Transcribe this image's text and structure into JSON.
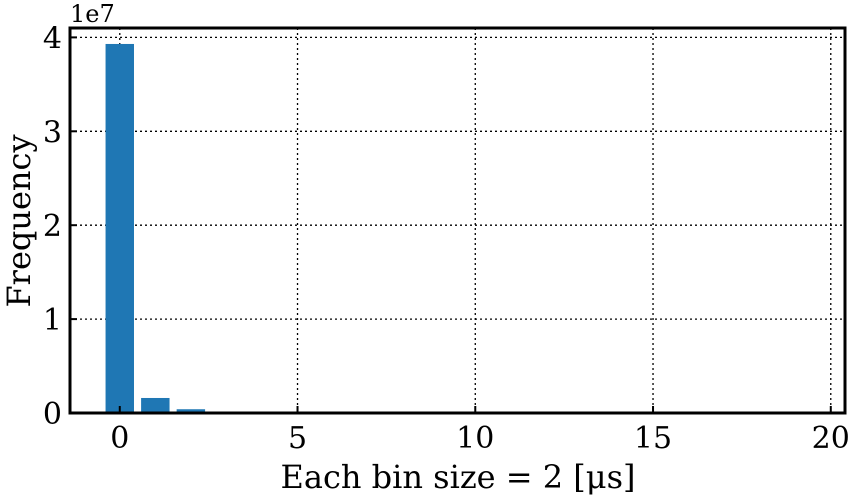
{
  "chart_data": {
    "type": "bar",
    "title": "",
    "xlabel": "Each bin size = 2 [μs]",
    "ylabel": "Frequency",
    "y_offset_label": "1e7",
    "xlim": [
      -1.4,
      20.4
    ],
    "ylim": [
      0,
      4.1
    ],
    "y_scale_factor": 10000000,
    "xticks": [
      0,
      5,
      10,
      15,
      20
    ],
    "xtick_labels": [
      "0",
      "5",
      "10",
      "15",
      "20"
    ],
    "yticks": [
      0,
      1,
      2,
      3,
      4
    ],
    "ytick_labels": [
      "0",
      "1",
      "2",
      "3",
      "4"
    ],
    "grid": true,
    "bar_color": "#1f77b4",
    "bars": [
      {
        "x": 0,
        "value": 39300000
      },
      {
        "x": 1,
        "value": 1600000
      },
      {
        "x": 2,
        "value": 400000
      }
    ]
  }
}
